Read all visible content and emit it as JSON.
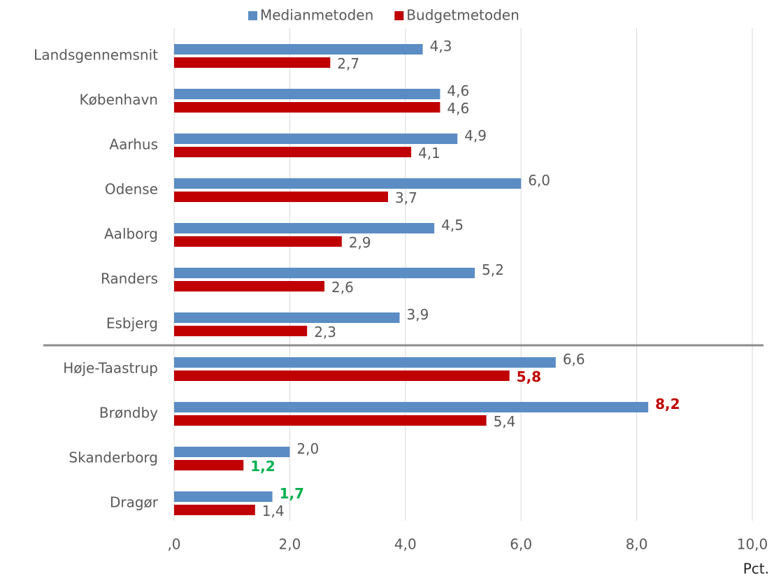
{
  "chart_data": {
    "type": "hbar",
    "categories": [
      "Landsgennemsnit",
      "København",
      "Aarhus",
      "Odense",
      "Aalborg",
      "Randers",
      "Esbjerg",
      "Høje-Taastrup",
      "Brøndby",
      "Skanderborg",
      "Dragør"
    ],
    "series": [
      {
        "name": "Medianmetoden",
        "color": "#5b8dc4",
        "values": [
          4.3,
          4.6,
          4.9,
          6.0,
          4.5,
          5.2,
          3.9,
          6.6,
          8.2,
          2.0,
          1.7
        ],
        "value_labels": [
          "4,3",
          "4,6",
          "4,9",
          "6,0",
          "4,5",
          "5,2",
          "3,9",
          "6,6",
          "8,2",
          "2,0",
          "1,7"
        ],
        "label_colors": [
          "#595959",
          "#595959",
          "#595959",
          "#595959",
          "#595959",
          "#595959",
          "#595959",
          "#595959",
          "#c00000",
          "#595959",
          "#00b050"
        ]
      },
      {
        "name": "Budgetmetoden",
        "color": "#c00000",
        "values": [
          2.7,
          4.6,
          4.1,
          3.7,
          2.9,
          2.6,
          2.3,
          5.8,
          5.4,
          1.2,
          1.4
        ],
        "value_labels": [
          "2,7",
          "4,6",
          "4,1",
          "3,7",
          "2,9",
          "2,6",
          "2,3",
          "5,8",
          "5,4",
          "1,2",
          "1,4"
        ],
        "label_colors": [
          "#595959",
          "#595959",
          "#595959",
          "#595959",
          "#595959",
          "#595959",
          "#595959",
          "#c00000",
          "#595959",
          "#00b050",
          "#595959"
        ]
      }
    ],
    "xlim": [
      0,
      10
    ],
    "xticks": [
      {
        "value": 0,
        "label": ",0"
      },
      {
        "value": 2,
        "label": "2,0"
      },
      {
        "value": 4,
        "label": "4,0"
      },
      {
        "value": 6,
        "label": "6,0"
      },
      {
        "value": 8,
        "label": "8,0"
      },
      {
        "value": 10,
        "label": "10,0"
      }
    ],
    "x_label": "Pct.",
    "grid": true,
    "legend": "top"
  }
}
